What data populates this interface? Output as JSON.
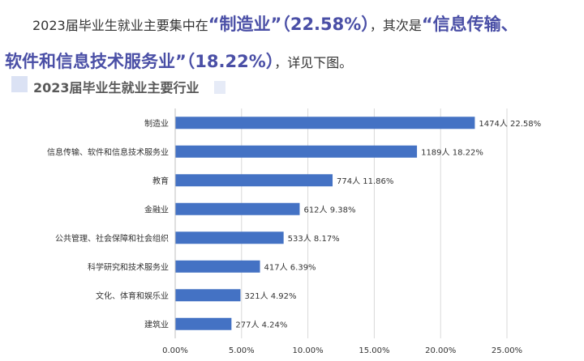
{
  "intro": {
    "line1_prefix": "2023届毕业生就业主要集中在",
    "line1_hl1": "“制造业”（22.58%）",
    "line1_mid": "，其次是",
    "line1_hl2": "“信息传输、",
    "line2_hl": "软件和信息技术服务业”（18.22%）",
    "line2_suffix": "，详见下图。"
  },
  "colors": {
    "bar": "#4472c4",
    "highlight": "#4a4fa6",
    "grid": "#d9d9d9"
  },
  "chart_data": {
    "type": "bar",
    "orientation": "horizontal",
    "title": "2023届毕业生就业主要行业",
    "categories": [
      "制造业",
      "信息传输、软件和信息技术服务业",
      "教育",
      "金融业",
      "公共管理、社会保障和社会组织",
      "科学研究和技术服务业",
      "文化、体育和娱乐业",
      "建筑业"
    ],
    "values": [
      22.58,
      18.22,
      11.86,
      9.38,
      8.17,
      6.39,
      4.92,
      4.24
    ],
    "counts": [
      1474,
      1189,
      774,
      612,
      533,
      417,
      321,
      277
    ],
    "data_labels": [
      "1474人  22.58%",
      "1189人  18.22%",
      "774人  11.86%",
      "612人  9.38%",
      "533人  8.17%",
      "417人  6.39%",
      "321人  4.92%",
      "277人  4.24%"
    ],
    "xticks": [
      "0.00%",
      "5.00%",
      "10.00%",
      "15.00%",
      "20.00%",
      "25.00%"
    ],
    "xlim": [
      0,
      25
    ],
    "grid": true
  }
}
